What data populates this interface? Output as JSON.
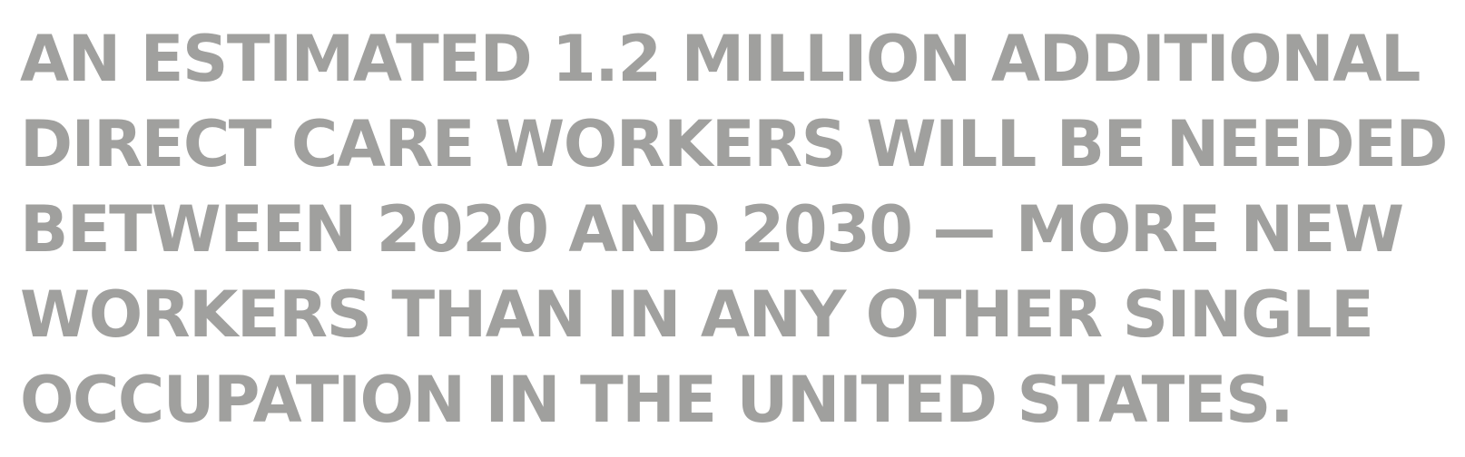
{
  "quote": {
    "lines": [
      "AN ESTIMATED 1.2 MILLION ADDITIONAL",
      "DIRECT CARE WORKERS WILL BE NEEDED",
      "BETWEEN 2020 AND 2030 — MORE NEW",
      "WORKERS THAN IN ANY OTHER SINGLE",
      "OCCUPATION IN THE UNITED STATES."
    ],
    "text_color": "#a0a09e"
  }
}
